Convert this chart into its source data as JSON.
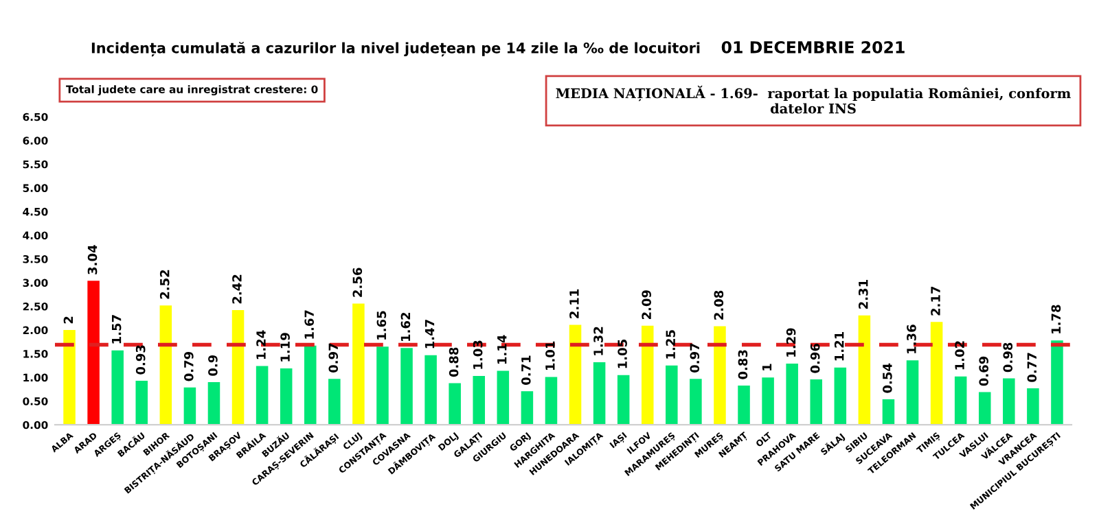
{
  "chart_data": {
    "type": "bar",
    "title": "Incidența cumulată a cazurilor la nivel județean pe 14 zile la ‰ de locuitori",
    "subtitle": "01 DECEMBRIE 2021",
    "annotations": [
      "Total judete care au inregistrat crestere: 0",
      "MEDIA NAȚIONALĂ - 1.69-  raportat la populatia României, conform datelor INS"
    ],
    "categories": [
      "ALBA",
      "ARAD",
      "ARGEȘ",
      "BACĂU",
      "BIHOR",
      "BISTRIȚA-NĂSĂUD",
      "BOTOȘANI",
      "BRAȘOV",
      "BRĂILA",
      "BUZĂU",
      "CARAȘ-SEVERIN",
      "CĂLĂRAȘI",
      "CLUJ",
      "CONSTANȚA",
      "COVASNA",
      "DÂMBOVIȚA",
      "DOLJ",
      "GALAȚI",
      "GIURGIU",
      "GORJ",
      "HARGHITA",
      "HUNEDOARA",
      "IALOMIȚA",
      "IAȘI",
      "ILFOV",
      "MARAMUREȘ",
      "MEHEDINȚI",
      "MUREȘ",
      "NEAMȚ",
      "OLT",
      "PRAHOVA",
      "SATU MARE",
      "SĂLAJ",
      "SIBIU",
      "SUCEAVA",
      "TELEORMAN",
      "TIMIȘ",
      "TULCEA",
      "VASLUI",
      "VÂLCEA",
      "VRANCEA",
      "MUNICIPIUL BUCUREȘTI"
    ],
    "values": [
      2,
      3.04,
      1.57,
      0.93,
      2.52,
      0.79,
      0.9,
      2.42,
      1.24,
      1.19,
      1.67,
      0.97,
      2.56,
      1.65,
      1.62,
      1.47,
      0.88,
      1.03,
      1.14,
      0.71,
      1.01,
      2.11,
      1.32,
      1.05,
      2.09,
      1.25,
      0.97,
      2.08,
      0.83,
      1,
      1.29,
      0.96,
      1.21,
      2.31,
      0.54,
      1.36,
      2.17,
      1.02,
      0.69,
      0.98,
      0.77,
      1.78
    ],
    "colors": [
      "#ffff00",
      "#ff0000",
      "#00e676",
      "#00e676",
      "#ffff00",
      "#00e676",
      "#00e676",
      "#ffff00",
      "#00e676",
      "#00e676",
      "#00e676",
      "#00e676",
      "#ffff00",
      "#00e676",
      "#00e676",
      "#00e676",
      "#00e676",
      "#00e676",
      "#00e676",
      "#00e676",
      "#00e676",
      "#ffff00",
      "#00e676",
      "#00e676",
      "#ffff00",
      "#00e676",
      "#00e676",
      "#ffff00",
      "#00e676",
      "#00e676",
      "#00e676",
      "#00e676",
      "#00e676",
      "#ffff00",
      "#00e676",
      "#00e676",
      "#ffff00",
      "#00e676",
      "#00e676",
      "#00e676",
      "#00e676",
      "#00e676"
    ],
    "ylim": [
      0,
      6.5
    ],
    "yticks": [
      {
        "value": 0,
        "label": "0.00"
      },
      {
        "value": 0.5,
        "label": "0.50"
      },
      {
        "value": 1,
        "label": "1.00"
      },
      {
        "value": 1.5,
        "label": "1.50"
      },
      {
        "value": 2,
        "label": "2.00"
      },
      {
        "value": 2.5,
        "label": "2.50"
      },
      {
        "value": 3,
        "label": "3.00"
      },
      {
        "value": 3.5,
        "label": "3.50"
      },
      {
        "value": 4,
        "label": "4.00"
      },
      {
        "value": 4.5,
        "label": "4.50"
      },
      {
        "value": 5,
        "label": "5.00"
      },
      {
        "value": 5.5,
        "label": "5.50"
      },
      {
        "value": 6,
        "label": "6.00"
      },
      {
        "value": 6.5,
        "label": "6.50"
      }
    ],
    "ref_lines": [
      {
        "axis": "y",
        "value": 1.69,
        "color": "#e02020",
        "line_style": "dashed"
      }
    ],
    "data_labels": true,
    "grid": false
  }
}
